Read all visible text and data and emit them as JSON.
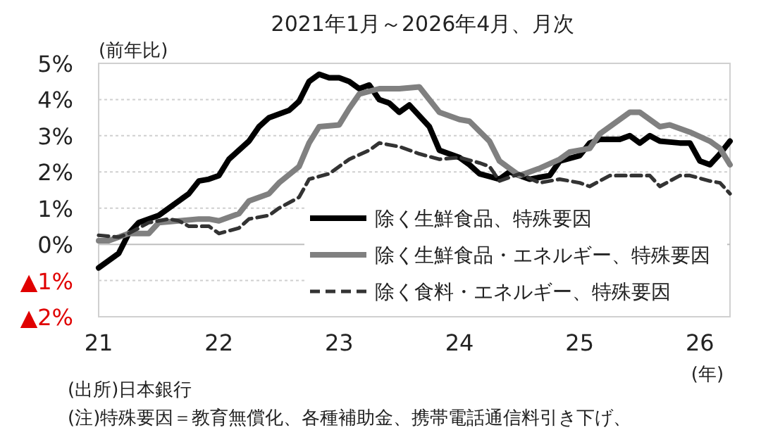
{
  "chart_data": {
    "type": "line",
    "title": "2021年1月～2026年4月、月次",
    "ylabel": "(前年比)",
    "xlabel": "(年)",
    "xlim": [
      "2021-01",
      "2026-04"
    ],
    "xticks": [
      {
        "value": "2021-01",
        "label": "21"
      },
      {
        "value": "2022-01",
        "label": "22"
      },
      {
        "value": "2023-01",
        "label": "23"
      },
      {
        "value": "2024-01",
        "label": "24"
      },
      {
        "value": "2025-01",
        "label": "25"
      },
      {
        "value": "2026-01",
        "label": "26"
      }
    ],
    "ylim": [
      -2,
      5
    ],
    "yticks": [
      {
        "value": -2,
        "label": "▲2%"
      },
      {
        "value": -1,
        "label": "▲1%"
      },
      {
        "value": 0,
        "label": "0%"
      },
      {
        "value": 1,
        "label": "1%"
      },
      {
        "value": 2,
        "label": "2%"
      },
      {
        "value": 3,
        "label": "3%"
      },
      {
        "value": 4,
        "label": "4%"
      },
      {
        "value": 5,
        "label": "5%"
      }
    ],
    "grid": "y",
    "legend": "bottom right",
    "series": [
      {
        "name": "除く生鮮食品、特殊要因",
        "color": "#000000",
        "line_style": "solid",
        "x": [
          "2021-01",
          "2021-03",
          "2021-04",
          "2021-05",
          "2021-07",
          "2021-08",
          "2021-09",
          "2021-10",
          "2021-11",
          "2021-12",
          "2022-01",
          "2022-02",
          "2022-04",
          "2022-05",
          "2022-06",
          "2022-08",
          "2022-09",
          "2022-10",
          "2022-11",
          "2022-12",
          "2023-01",
          "2023-02",
          "2023-03",
          "2023-04",
          "2023-05",
          "2023-06",
          "2023-07",
          "2023-08",
          "2023-10",
          "2023-11",
          "2024-01",
          "2024-02",
          "2024-03",
          "2024-05",
          "2024-06",
          "2024-08",
          "2024-10",
          "2024-11",
          "2025-01",
          "2025-02",
          "2025-03",
          "2025-05",
          "2025-06",
          "2025-07",
          "2025-08",
          "2025-09",
          "2025-11",
          "2025-12",
          "2026-01",
          "2026-02",
          "2026-03",
          "2026-04"
        ],
        "values": [
          -0.65,
          -0.25,
          0.3,
          0.6,
          0.8,
          1.0,
          1.2,
          1.4,
          1.75,
          1.8,
          1.9,
          2.35,
          2.85,
          3.25,
          3.5,
          3.7,
          3.95,
          4.5,
          4.7,
          4.6,
          4.6,
          4.5,
          4.3,
          4.4,
          4.0,
          3.9,
          3.65,
          3.85,
          3.25,
          2.6,
          2.4,
          2.2,
          1.95,
          1.8,
          2.0,
          1.8,
          1.9,
          2.3,
          2.45,
          2.8,
          2.9,
          2.9,
          3.0,
          2.8,
          3.0,
          2.85,
          2.8,
          2.8,
          2.3,
          2.2,
          2.5,
          2.85
        ]
      },
      {
        "name": "除く生鮮食品・エネルギー、特殊要因",
        "color": "#808080",
        "line_style": "solid",
        "x": [
          "2021-01",
          "2021-02",
          "2021-04",
          "2021-06",
          "2021-07",
          "2021-09",
          "2021-11",
          "2021-12",
          "2022-01",
          "2022-03",
          "2022-04",
          "2022-06",
          "2022-07",
          "2022-09",
          "2022-10",
          "2022-11",
          "2023-01",
          "2023-02",
          "2023-03",
          "2023-05",
          "2023-07",
          "2023-09",
          "2023-10",
          "2023-11",
          "2024-01",
          "2024-02",
          "2024-04",
          "2024-05",
          "2024-06",
          "2024-07",
          "2024-09",
          "2024-11",
          "2024-12",
          "2025-02",
          "2025-03",
          "2025-05",
          "2025-06",
          "2025-07",
          "2025-09",
          "2025-10",
          "2025-12",
          "2026-02",
          "2026-03",
          "2026-04"
        ],
        "values": [
          0.1,
          0.1,
          0.3,
          0.3,
          0.6,
          0.65,
          0.7,
          0.7,
          0.65,
          0.85,
          1.2,
          1.4,
          1.7,
          2.15,
          2.8,
          3.25,
          3.3,
          3.75,
          4.15,
          4.3,
          4.3,
          4.35,
          4.0,
          3.65,
          3.45,
          3.4,
          2.85,
          2.3,
          2.1,
          1.9,
          2.1,
          2.35,
          2.55,
          2.65,
          3.05,
          3.45,
          3.65,
          3.65,
          3.25,
          3.3,
          3.1,
          2.85,
          2.65,
          2.2
        ]
      },
      {
        "name": "除く食料・エネルギー、特殊要因",
        "color": "#333333",
        "line_style": "dashed",
        "x": [
          "2021-01",
          "2021-03",
          "2021-04",
          "2021-06",
          "2021-08",
          "2021-09",
          "2021-10",
          "2021-12",
          "2022-01",
          "2022-03",
          "2022-04",
          "2022-06",
          "2022-07",
          "2022-09",
          "2022-10",
          "2022-12",
          "2023-01",
          "2023-02",
          "2023-04",
          "2023-05",
          "2023-07",
          "2023-09",
          "2023-11",
          "2024-01",
          "2024-03",
          "2024-04",
          "2024-05",
          "2024-07",
          "2024-09",
          "2024-11",
          "2025-01",
          "2025-02",
          "2025-04",
          "2025-06",
          "2025-08",
          "2025-09",
          "2025-11",
          "2025-12",
          "2026-02",
          "2026-03",
          "2026-04"
        ],
        "values": [
          0.25,
          0.2,
          0.3,
          0.6,
          0.7,
          0.65,
          0.5,
          0.5,
          0.3,
          0.45,
          0.7,
          0.8,
          1.0,
          1.3,
          1.8,
          1.95,
          2.15,
          2.35,
          2.6,
          2.8,
          2.7,
          2.5,
          2.35,
          2.4,
          2.25,
          2.15,
          1.75,
          1.95,
          1.7,
          1.8,
          1.7,
          1.6,
          1.9,
          1.9,
          1.9,
          1.6,
          1.9,
          1.9,
          1.75,
          1.7,
          1.4
        ]
      }
    ],
    "annotations": [
      "(出所)日本銀行",
      "(注)特殊要因＝教育無償化、各種補助金、携帯電話通信料引き下げ、"
    ]
  }
}
